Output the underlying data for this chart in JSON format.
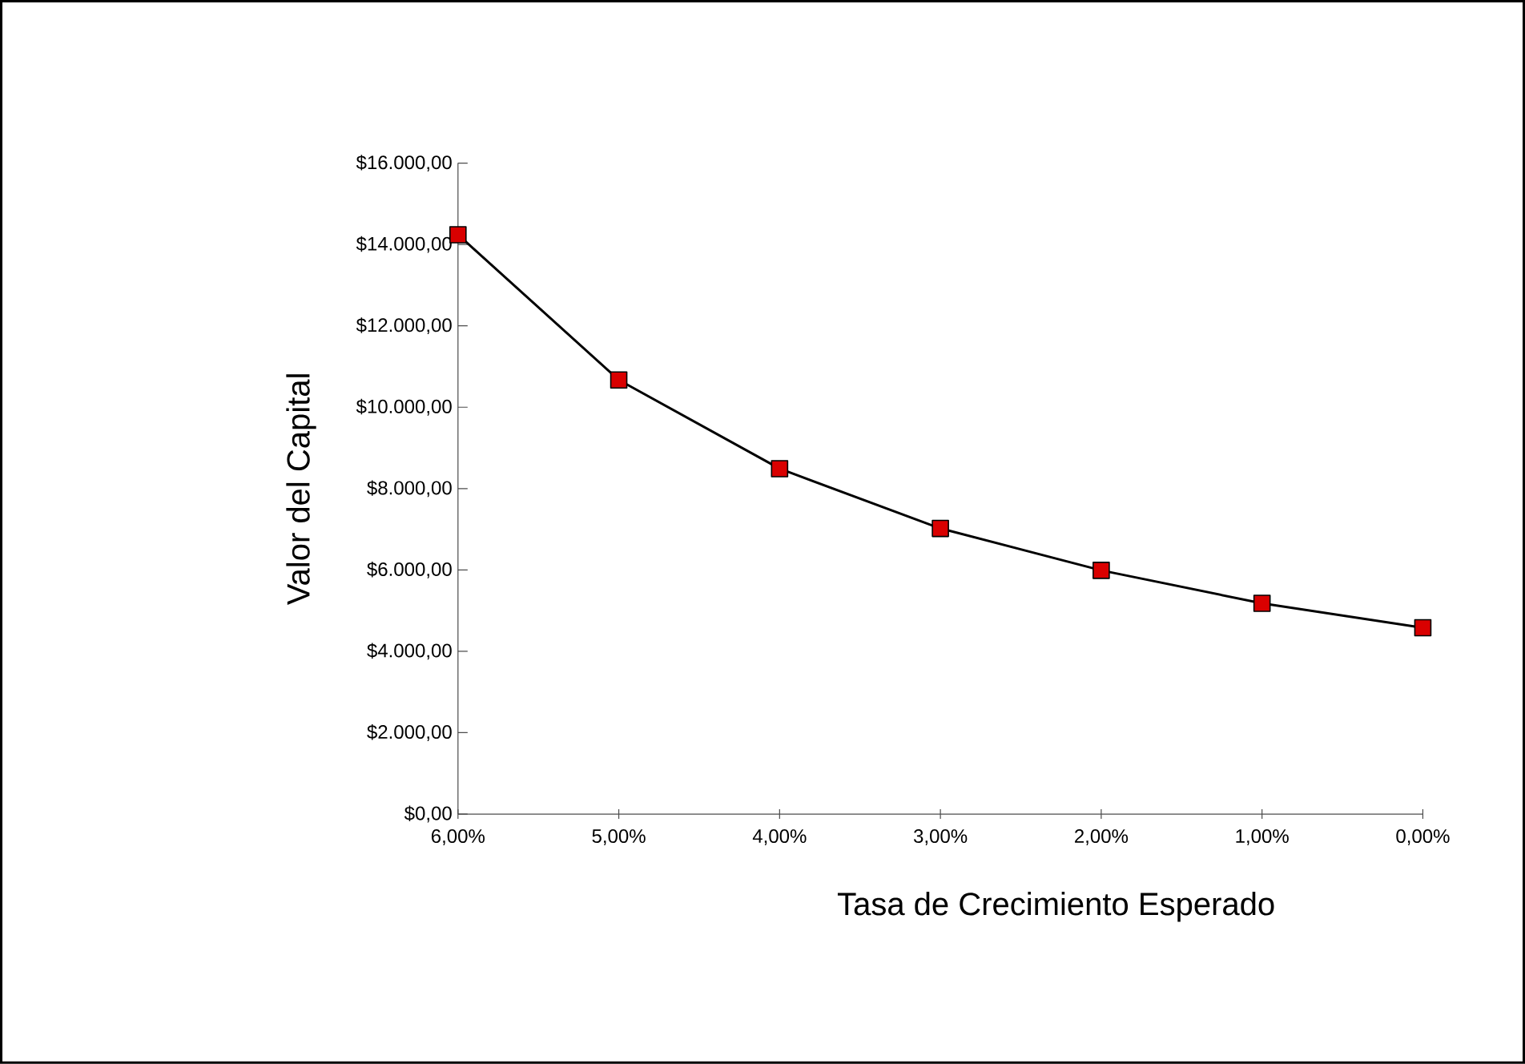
{
  "chart_data": {
    "type": "line",
    "xlabel": "Tasa de Crecimiento Esperado",
    "ylabel": "Valor del Capital",
    "categories": [
      "6,00%",
      "5,00%",
      "4,00%",
      "3,00%",
      "2,00%",
      "1,00%",
      "0,00%"
    ],
    "series": [
      {
        "color": "#000000",
        "values": [
          14240,
          10670,
          8490,
          7020,
          5990,
          5180,
          4580
        ]
      }
    ],
    "marker": "square",
    "line_style": "solid",
    "grid": false,
    "ylim": [
      0,
      16000
    ],
    "yticks": [
      {
        "value": 0,
        "label": "$0,00"
      },
      {
        "value": 2000,
        "label": "$2.000,00"
      },
      {
        "value": 4000,
        "label": "$4.000,00"
      },
      {
        "value": 6000,
        "label": "$6.000,00"
      },
      {
        "value": 8000,
        "label": "$8.000,00"
      },
      {
        "value": 10000,
        "label": "$10.000,00"
      },
      {
        "value": 12000,
        "label": "$12.000,00"
      },
      {
        "value": 14000,
        "label": "$14.000,00"
      },
      {
        "value": 16000,
        "label": "$16.000,00"
      }
    ]
  }
}
